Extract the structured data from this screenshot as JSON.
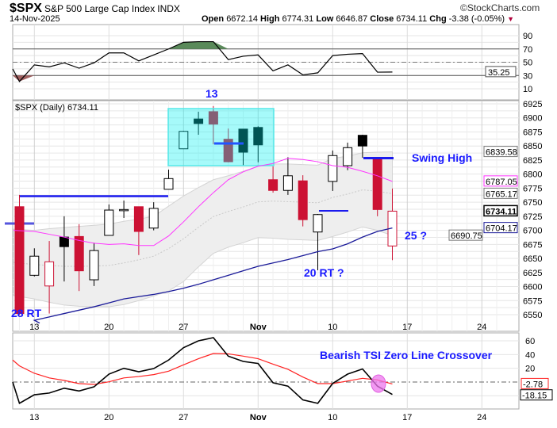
{
  "header": {
    "symbol": "$SPX",
    "name": "S&P 500 Large Cap Index",
    "exchange": "INDX",
    "date": "14-Nov-2025",
    "brand": "©StockCharts.com",
    "open_label": "Open",
    "open": "6672.14",
    "high_label": "High",
    "high": "6774.31",
    "low_label": "Low",
    "low": "6646.87",
    "close_label": "Close",
    "close": "6734.11",
    "chg_label": "Chg",
    "chg": "-3.38 (-0.05%)",
    "chg_direction": "down"
  },
  "colors": {
    "up": "#000000",
    "down": "#cc1133",
    "ema_short": "#ff33ff",
    "ma_long": "#1a1a99",
    "band": "#e6e6e6",
    "box": "#00f0f0",
    "annotation": "#1a1aff",
    "rsi_overbought_fill": "#5a8a5a",
    "rsi_oversold_fill": "#a06060",
    "tsi_line": "#000000",
    "tsi_signal": "#ff2222",
    "highlight": "#ee77ee"
  },
  "x_axis": {
    "ticks": [
      "13",
      "20",
      "27",
      "Nov",
      "10",
      "17",
      "24"
    ]
  },
  "rsi_panel": {
    "axis_ticks": [
      "90",
      "70",
      "50",
      "30",
      "10"
    ],
    "current": "35.25",
    "levels": [
      70,
      50,
      30
    ],
    "values": [
      40,
      21,
      46,
      43,
      49,
      41,
      49,
      64,
      64,
      52,
      61,
      70,
      80,
      81,
      81,
      54,
      59,
      61,
      37,
      46,
      31,
      34,
      60,
      62,
      63,
      35,
      35.25
    ]
  },
  "price_panel": {
    "legend": "$SPX (Daily) 6734.11",
    "axis_ticks": [
      "6925",
      "6900",
      "6875",
      "6850",
      "6825",
      "6800",
      "6775",
      "6750",
      "6725",
      "6700",
      "6675",
      "6650",
      "6625",
      "6600",
      "6575",
      "6550"
    ],
    "tags": [
      {
        "value": "6839.58",
        "kind": "band"
      },
      {
        "value": "6787.05",
        "kind": "ema_short"
      },
      {
        "value": "6765.17",
        "kind": "band"
      },
      {
        "value": "6734.11",
        "kind": "close"
      },
      {
        "value": "6704.17",
        "kind": "ma_long"
      },
      {
        "value": "6690.75",
        "kind": "band"
      }
    ],
    "candles": [
      [
        6742,
        6763,
        6550,
        6552
      ],
      [
        6620,
        6668,
        6618,
        6654
      ],
      [
        6601,
        6681,
        6552,
        6644
      ],
      [
        6688,
        6725,
        6609,
        6671
      ],
      [
        6689,
        6711,
        6592,
        6628
      ],
      [
        6612,
        6678,
        6601,
        6664
      ],
      [
        6691,
        6746,
        6691,
        6736
      ],
      [
        6736,
        6753,
        6722,
        6737
      ],
      [
        6742,
        6742,
        6656,
        6698
      ],
      [
        6704,
        6750,
        6700,
        6739
      ],
      [
        6773,
        6808,
        6773,
        6792
      ],
      [
        6845,
        6877,
        6845,
        6876
      ],
      [
        6898,
        6911,
        6870,
        6890
      ],
      [
        6911,
        6921,
        6853,
        6889
      ],
      [
        6862,
        6881,
        6821,
        6822
      ],
      [
        6880,
        6880,
        6815,
        6839
      ],
      [
        6883,
        6885,
        6821,
        6852
      ],
      [
        6790,
        6814,
        6767,
        6771
      ],
      [
        6771,
        6830,
        6763,
        6797
      ],
      [
        6788,
        6798,
        6707,
        6719
      ],
      [
        6697,
        6729,
        6629,
        6728
      ],
      [
        6787,
        6842,
        6770,
        6833
      ],
      [
        6815,
        6856,
        6807,
        6847
      ],
      [
        6869,
        6870,
        6829,
        6850
      ],
      [
        6826,
        6829,
        6725,
        6737
      ],
      [
        6672.14,
        6774.31,
        6646.87,
        6734.11
      ]
    ],
    "ema_short": [
      6700,
      6698,
      6693,
      6688,
      6682,
      6677,
      6675,
      6676,
      6673,
      6673,
      6690,
      6715,
      6742,
      6767,
      6790,
      6804,
      6814,
      6819,
      6828,
      6826,
      6822,
      6815,
      6812,
      6805,
      6797,
      6787.05
    ],
    "ma_long": [
      6535,
      6540,
      6546,
      6552,
      6558,
      6564,
      6571,
      6578,
      6582,
      6586,
      6591,
      6597,
      6604,
      6612,
      6620,
      6628,
      6636,
      6642,
      6648,
      6655,
      6662,
      6667,
      6676,
      6688,
      6698,
      6704.17
    ],
    "band_upper": [
      6702,
      6700,
      6703,
      6705,
      6707,
      6709,
      6711,
      6716,
      6720,
      6725,
      6743,
      6761,
      6776,
      6790,
      6797,
      6805,
      6814,
      6818,
      6818,
      6817,
      6816,
      6828,
      6832,
      6838,
      6839,
      6839.58
    ],
    "band_lower": [
      6584,
      6578,
      6572,
      6567,
      6565,
      6564,
      6564,
      6568,
      6575,
      6583,
      6592,
      6609,
      6635,
      6659,
      6670,
      6678,
      6687,
      6686,
      6684,
      6683,
      6682,
      6689,
      6697,
      6706,
      6700,
      6690.75
    ],
    "annotations": {
      "label_13": "13",
      "swing_high": "Swing High",
      "label_25": "25 ?",
      "label_20rt": "20  RT ?",
      "label_28rt": "28 RT"
    }
  },
  "tsi_panel": {
    "axis_ticks": [
      "60",
      "40",
      "20"
    ],
    "signal_tag": "-2.78",
    "tsi_tag": "-18.15",
    "annotation": "Bearish TSI Zero Line Crossover",
    "tsi": [
      0,
      -31,
      -18.5,
      -16,
      -9,
      -13,
      -7,
      11.5,
      20,
      15,
      19.6,
      32,
      50,
      60,
      64.6,
      37.7,
      30,
      27,
      -1,
      -6,
      -26,
      -31,
      -2,
      11.5,
      19,
      -6,
      -18.15
    ],
    "signal": [
      32,
      23.5,
      12.7,
      6,
      2.3,
      -2.3,
      -3.5,
      0.4,
      6,
      8,
      10.8,
      15.8,
      25,
      34,
      41.5,
      41,
      37.7,
      34,
      26,
      18.5,
      7.3,
      -2.3,
      -2.3,
      1.5,
      5.4,
      3,
      -2.78
    ]
  }
}
